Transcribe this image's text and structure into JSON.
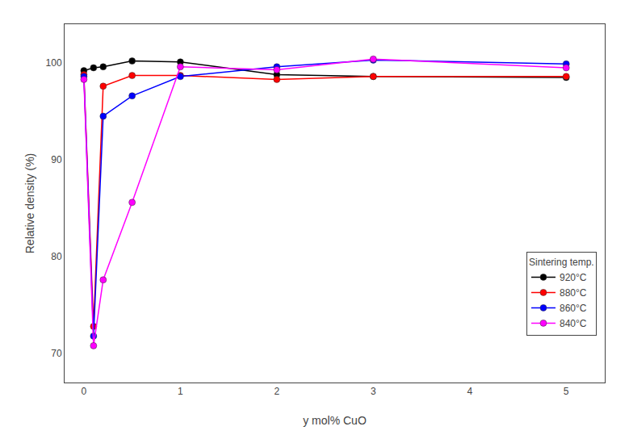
{
  "chart_data": {
    "type": "line",
    "xlabel": "y mol% CuO",
    "ylabel": "Relative density (%)",
    "xlim": [
      -0.2,
      5.4
    ],
    "ylim": [
      67,
      104
    ],
    "xticks": [
      0,
      1,
      2,
      3,
      4,
      5
    ],
    "yticks": [
      70,
      80,
      90,
      100
    ],
    "grid": false,
    "legend": "lower right",
    "legend_title": "Sintering temp.",
    "marker": "circle",
    "series": [
      {
        "name": "920°C",
        "color": "#000000",
        "x": [
          0,
          0.1,
          0.2,
          0.5,
          1,
          2,
          3,
          5
        ],
        "values": [
          99.2,
          99.5,
          99.6,
          100.2,
          100.1,
          98.8,
          98.6,
          98.5
        ]
      },
      {
        "name": "880°C",
        "color": "#ff0000",
        "x": [
          0,
          0.1,
          0.2,
          0.5,
          1,
          2,
          3,
          5
        ],
        "values": [
          98.8,
          72.8,
          97.6,
          98.7,
          98.7,
          98.3,
          98.6,
          98.6
        ]
      },
      {
        "name": "860°C",
        "color": "#0000ff",
        "x": [
          0,
          0.1,
          0.2,
          0.5,
          1,
          2,
          3,
          5
        ],
        "values": [
          98.6,
          71.8,
          94.5,
          96.6,
          98.6,
          99.6,
          100.3,
          99.9
        ]
      },
      {
        "name": "840°C",
        "color": "#ff00ff",
        "x": [
          0,
          0.1,
          0.2,
          0.5,
          1,
          2,
          3,
          5
        ],
        "values": [
          98.3,
          70.8,
          77.6,
          85.6,
          99.6,
          99.3,
          100.4,
          99.5
        ]
      }
    ]
  }
}
